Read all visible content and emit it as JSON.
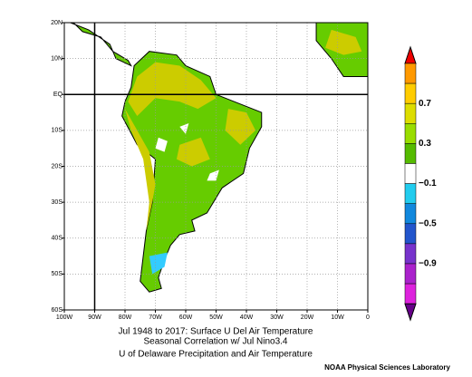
{
  "map": {
    "lat_labels": [
      "20N",
      "10N",
      "EQ",
      "10S",
      "20S",
      "30S",
      "40S",
      "50S",
      "60S"
    ],
    "lon_labels": [
      "100W",
      "90W",
      "80W",
      "70W",
      "60W",
      "50W",
      "40W",
      "30W",
      "20W",
      "10W",
      "0"
    ],
    "title": [
      "Jul 1948 to 2017: Surface U Del Air Temperature",
      "Seasonal Correlation w/ Jul Nino3.4"
    ],
    "subtitle": "U of Delaware Precipitation and Air Temperature",
    "credit": "NOAA Physical Sciences Laboratory"
  },
  "colorbar": {
    "labels": [
      "0.7",
      "0.3",
      "−0.1",
      "−0.5",
      "−0.9"
    ]
  }
}
